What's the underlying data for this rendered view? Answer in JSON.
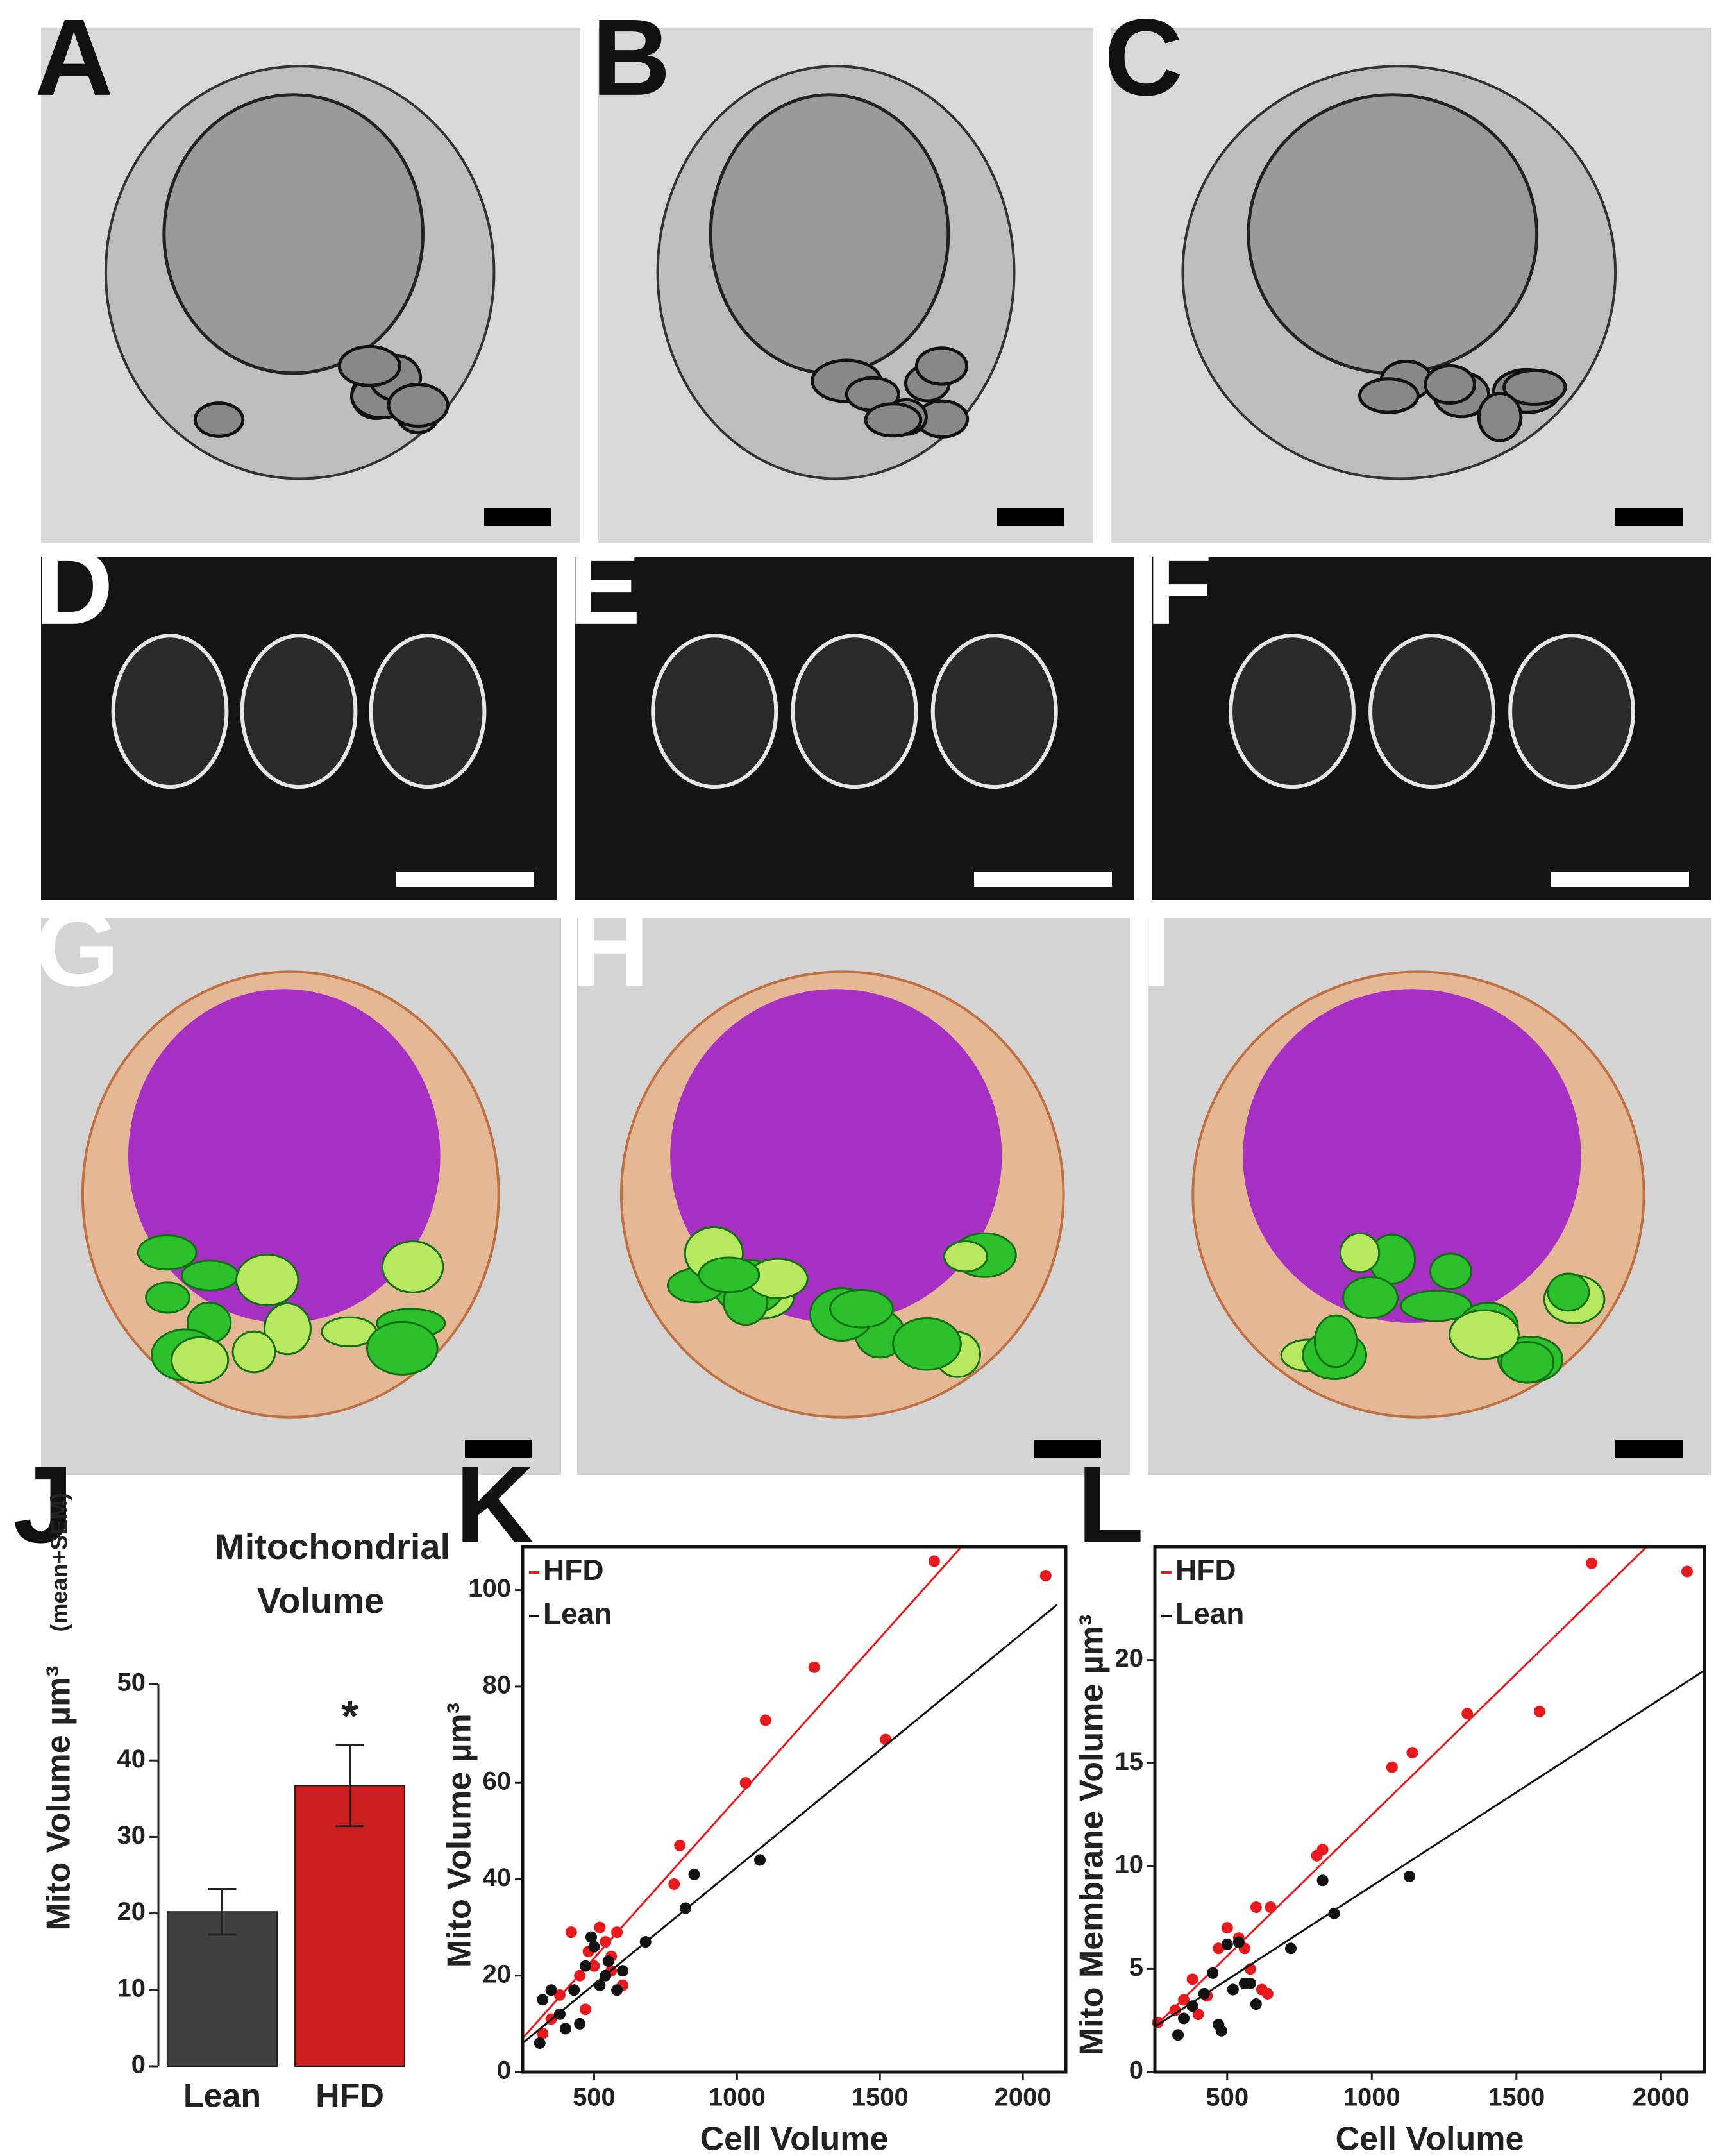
{
  "panels": {
    "letters": [
      "A",
      "B",
      "C",
      "D",
      "E",
      "F",
      "G",
      "H",
      "I",
      "J",
      "K",
      "L"
    ]
  },
  "chart_data": [
    {
      "type": "bar",
      "title": "Mitochondrial Volume",
      "ylabel": "Mito Volume µm³",
      "ylabel_note": "(mean+SEM)",
      "categories": [
        "Lean",
        "HFD"
      ],
      "values": [
        20.2,
        36.7
      ],
      "errors": [
        3.0,
        5.3
      ],
      "colors": [
        "#404040",
        "#cc1f1f"
      ],
      "annotation": "*",
      "ylim": [
        0,
        50
      ],
      "yticks": [
        0,
        10,
        20,
        30,
        40,
        50
      ]
    },
    {
      "type": "scatter",
      "xlabel": "Cell Volume",
      "ylabel": "Mito Volume µm³",
      "xlim": [
        250,
        2150
      ],
      "xticks": [
        500,
        1000,
        1500,
        2000
      ],
      "ylim": [
        0,
        109
      ],
      "yticks": [
        0,
        20,
        40,
        60,
        80,
        100
      ],
      "legend": "top-left",
      "series": [
        {
          "name": "HFD",
          "color": "#e8191c",
          "x": [
            320,
            350,
            380,
            420,
            450,
            470,
            480,
            500,
            520,
            540,
            560,
            580,
            600,
            560,
            780,
            800,
            1030,
            1100,
            1270,
            1520,
            1690,
            2080
          ],
          "values": [
            8,
            11,
            16,
            29,
            20,
            13,
            25,
            22,
            30,
            27,
            21,
            29,
            18,
            24,
            39,
            47,
            60,
            73,
            84,
            69,
            106,
            103
          ],
          "fit_x": [
            250,
            1800
          ],
          "fit_values": [
            7,
            110
          ]
        },
        {
          "name": "Lean",
          "color": "#111111",
          "x": [
            310,
            320,
            350,
            380,
            400,
            430,
            450,
            470,
            490,
            500,
            520,
            540,
            550,
            580,
            600,
            680,
            820,
            850,
            1080
          ],
          "values": [
            6,
            15,
            17,
            12,
            9,
            17,
            10,
            22,
            28,
            26,
            18,
            20,
            23,
            17,
            21,
            27,
            34,
            41,
            44
          ],
          "fit_x": [
            250,
            2120
          ],
          "fit_values": [
            6,
            97
          ]
        }
      ]
    },
    {
      "type": "scatter",
      "xlabel": "Cell Volume",
      "ylabel": "Mito Membrane Volume µm³",
      "xlim": [
        250,
        2150
      ],
      "xticks": [
        500,
        1000,
        1500,
        2000
      ],
      "ylim": [
        0,
        25.5
      ],
      "yticks": [
        0,
        5,
        10,
        15,
        20
      ],
      "legend": "top-left",
      "series": [
        {
          "name": "HFD",
          "color": "#e8191c",
          "x": [
            260,
            320,
            350,
            380,
            400,
            430,
            470,
            500,
            520,
            540,
            560,
            580,
            600,
            620,
            650,
            640,
            810,
            830,
            1070,
            1140,
            1330,
            1580,
            1760,
            2090
          ],
          "values": [
            2.4,
            3,
            3.5,
            4.5,
            2.8,
            3.7,
            6,
            7,
            4,
            6.5,
            6,
            5,
            8,
            4,
            8,
            3.8,
            10.5,
            10.8,
            14.8,
            15.5,
            17.4,
            17.5,
            24.7,
            24.3
          ],
          "fit_x": [
            250,
            1950
          ],
          "fit_values": [
            2.2,
            25.5
          ]
        },
        {
          "name": "Lean",
          "color": "#111111",
          "x": [
            330,
            350,
            380,
            420,
            450,
            470,
            480,
            500,
            520,
            540,
            560,
            580,
            600,
            720,
            830,
            870,
            1130
          ],
          "values": [
            1.8,
            2.6,
            3.2,
            3.8,
            4.8,
            2.3,
            2,
            6.2,
            4,
            6.3,
            4.3,
            4.3,
            3.3,
            6,
            9.3,
            7.7,
            9.5
          ],
          "fit_x": [
            250,
            2150
          ],
          "fit_values": [
            2.2,
            19.5
          ]
        }
      ]
    }
  ]
}
